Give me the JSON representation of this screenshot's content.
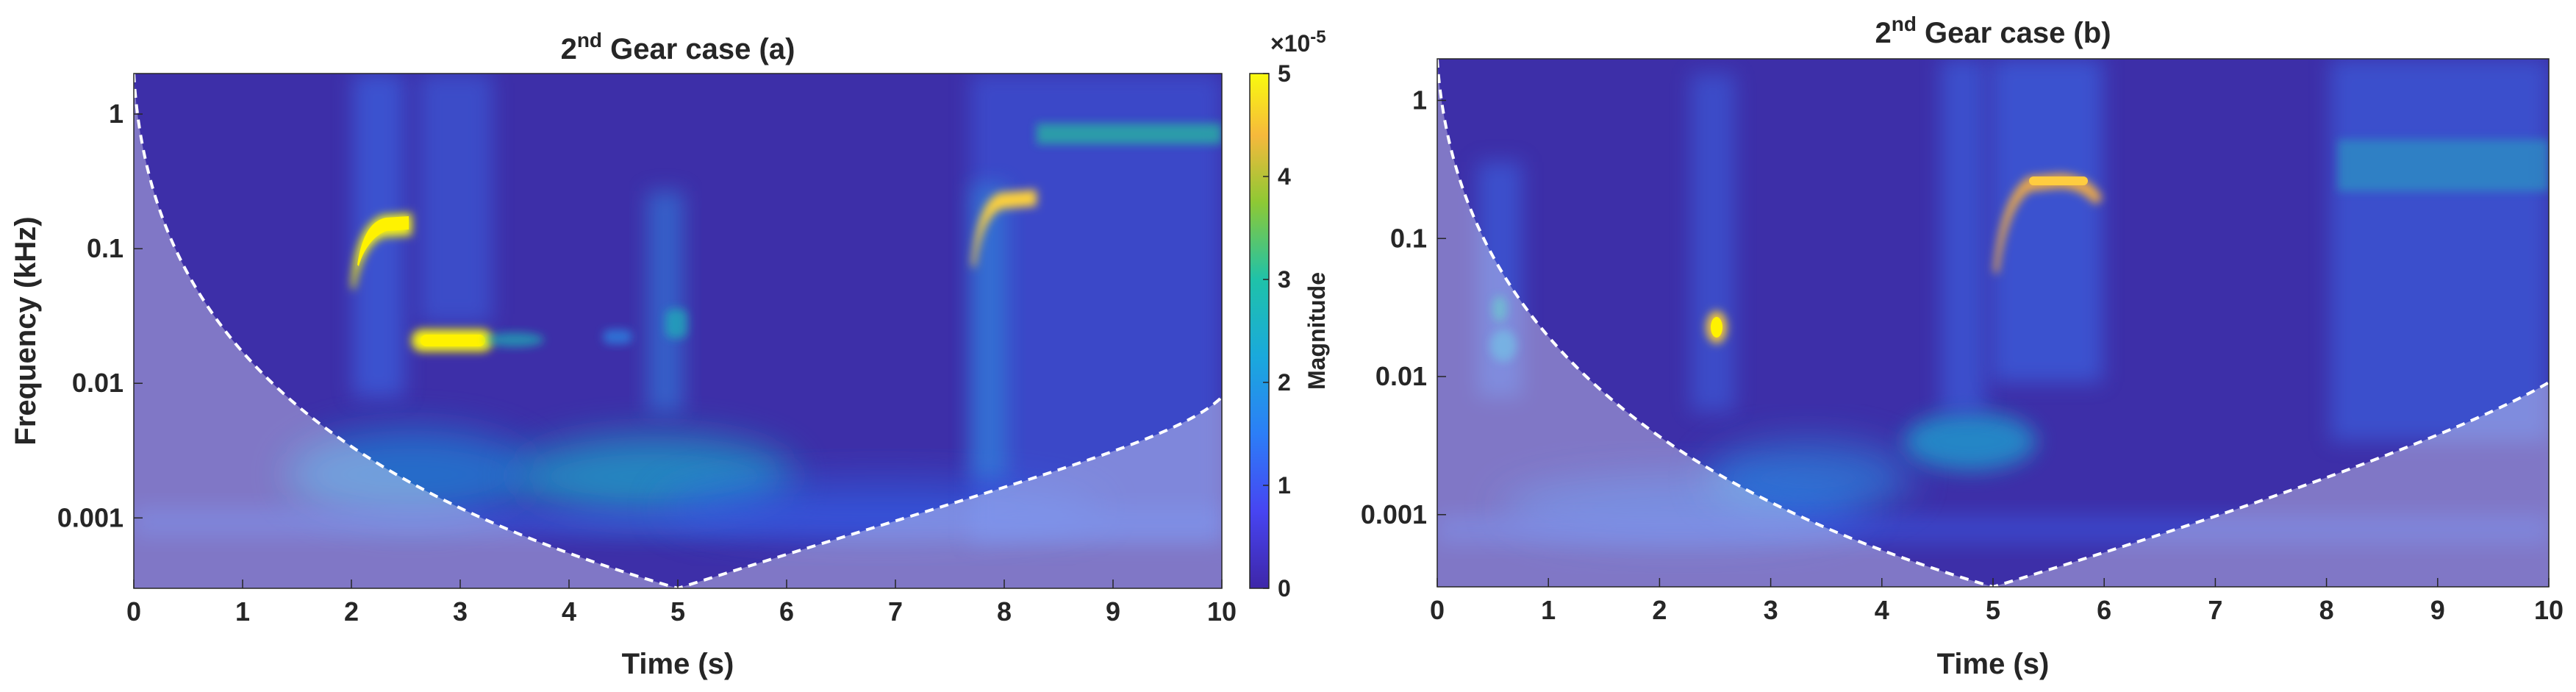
{
  "chart_data": [
    {
      "type": "heatmap",
      "title_main": "2",
      "title_sup": "nd",
      "title_rest": " Gear case (a)",
      "xlabel": "Time (s)",
      "ylabel": "Frequency (kHz)",
      "xlim": [
        0,
        10
      ],
      "ylim": [
        0.0003,
        2.0
      ],
      "yscale": "log",
      "xticks": [
        "0",
        "1",
        "2",
        "3",
        "4",
        "5",
        "6",
        "7",
        "8",
        "9",
        "10"
      ],
      "yticks": [
        "0.001",
        "0.01",
        "0.1",
        "1"
      ],
      "cone_of_influence": true,
      "colormap": "parula",
      "colorbar": {
        "label": "Magnitude",
        "range": [
          0,
          5
        ],
        "ticks": [
          "0",
          "1",
          "2",
          "3",
          "4",
          "5"
        ],
        "exponent_base": "×10",
        "exponent_power": "-5"
      },
      "features": [
        {
          "t": [
            1.9,
            2.6
          ],
          "f": [
            0.04,
            0.16
          ],
          "magnitude": 5.0
        },
        {
          "t": [
            2.6,
            3.3
          ],
          "f": [
            0.018,
            0.025
          ],
          "magnitude": 5.0
        },
        {
          "t": [
            7.7,
            8.3
          ],
          "f": [
            0.12,
            0.3
          ],
          "magnitude": 4.0
        },
        {
          "t": [
            8.3,
            10
          ],
          "f": [
            0.6,
            0.8
          ],
          "magnitude": 2.5
        },
        {
          "t": [
            4.2,
            5.0
          ],
          "f": [
            0.0015,
            0.004
          ],
          "magnitude": 1.8
        }
      ]
    },
    {
      "type": "heatmap",
      "title_main": "2",
      "title_sup": "nd",
      "title_rest": " Gear case (b)",
      "xlabel": "Time (s)",
      "ylabel": "",
      "xlim": [
        0,
        10
      ],
      "ylim": [
        0.0003,
        2.0
      ],
      "yscale": "log",
      "xticks": [
        "0",
        "1",
        "2",
        "3",
        "4",
        "5",
        "6",
        "7",
        "8",
        "9",
        "10"
      ],
      "yticks": [
        "0.001",
        "0.01",
        "0.1",
        "1"
      ],
      "cone_of_influence": true,
      "colormap": "parula",
      "features": [
        {
          "t": [
            2.5,
            2.7
          ],
          "f": [
            0.02,
            0.03
          ],
          "magnitude": 4.5
        },
        {
          "t": [
            5.0,
            6.0
          ],
          "f": [
            0.2,
            0.3
          ],
          "magnitude": 3.5
        },
        {
          "t": [
            4.5,
            5.0
          ],
          "f": [
            0.003,
            0.005
          ],
          "magnitude": 2.2
        },
        {
          "t": [
            8.1,
            10
          ],
          "f": [
            0.3,
            1.5
          ],
          "magnitude": 1.8
        }
      ]
    }
  ]
}
